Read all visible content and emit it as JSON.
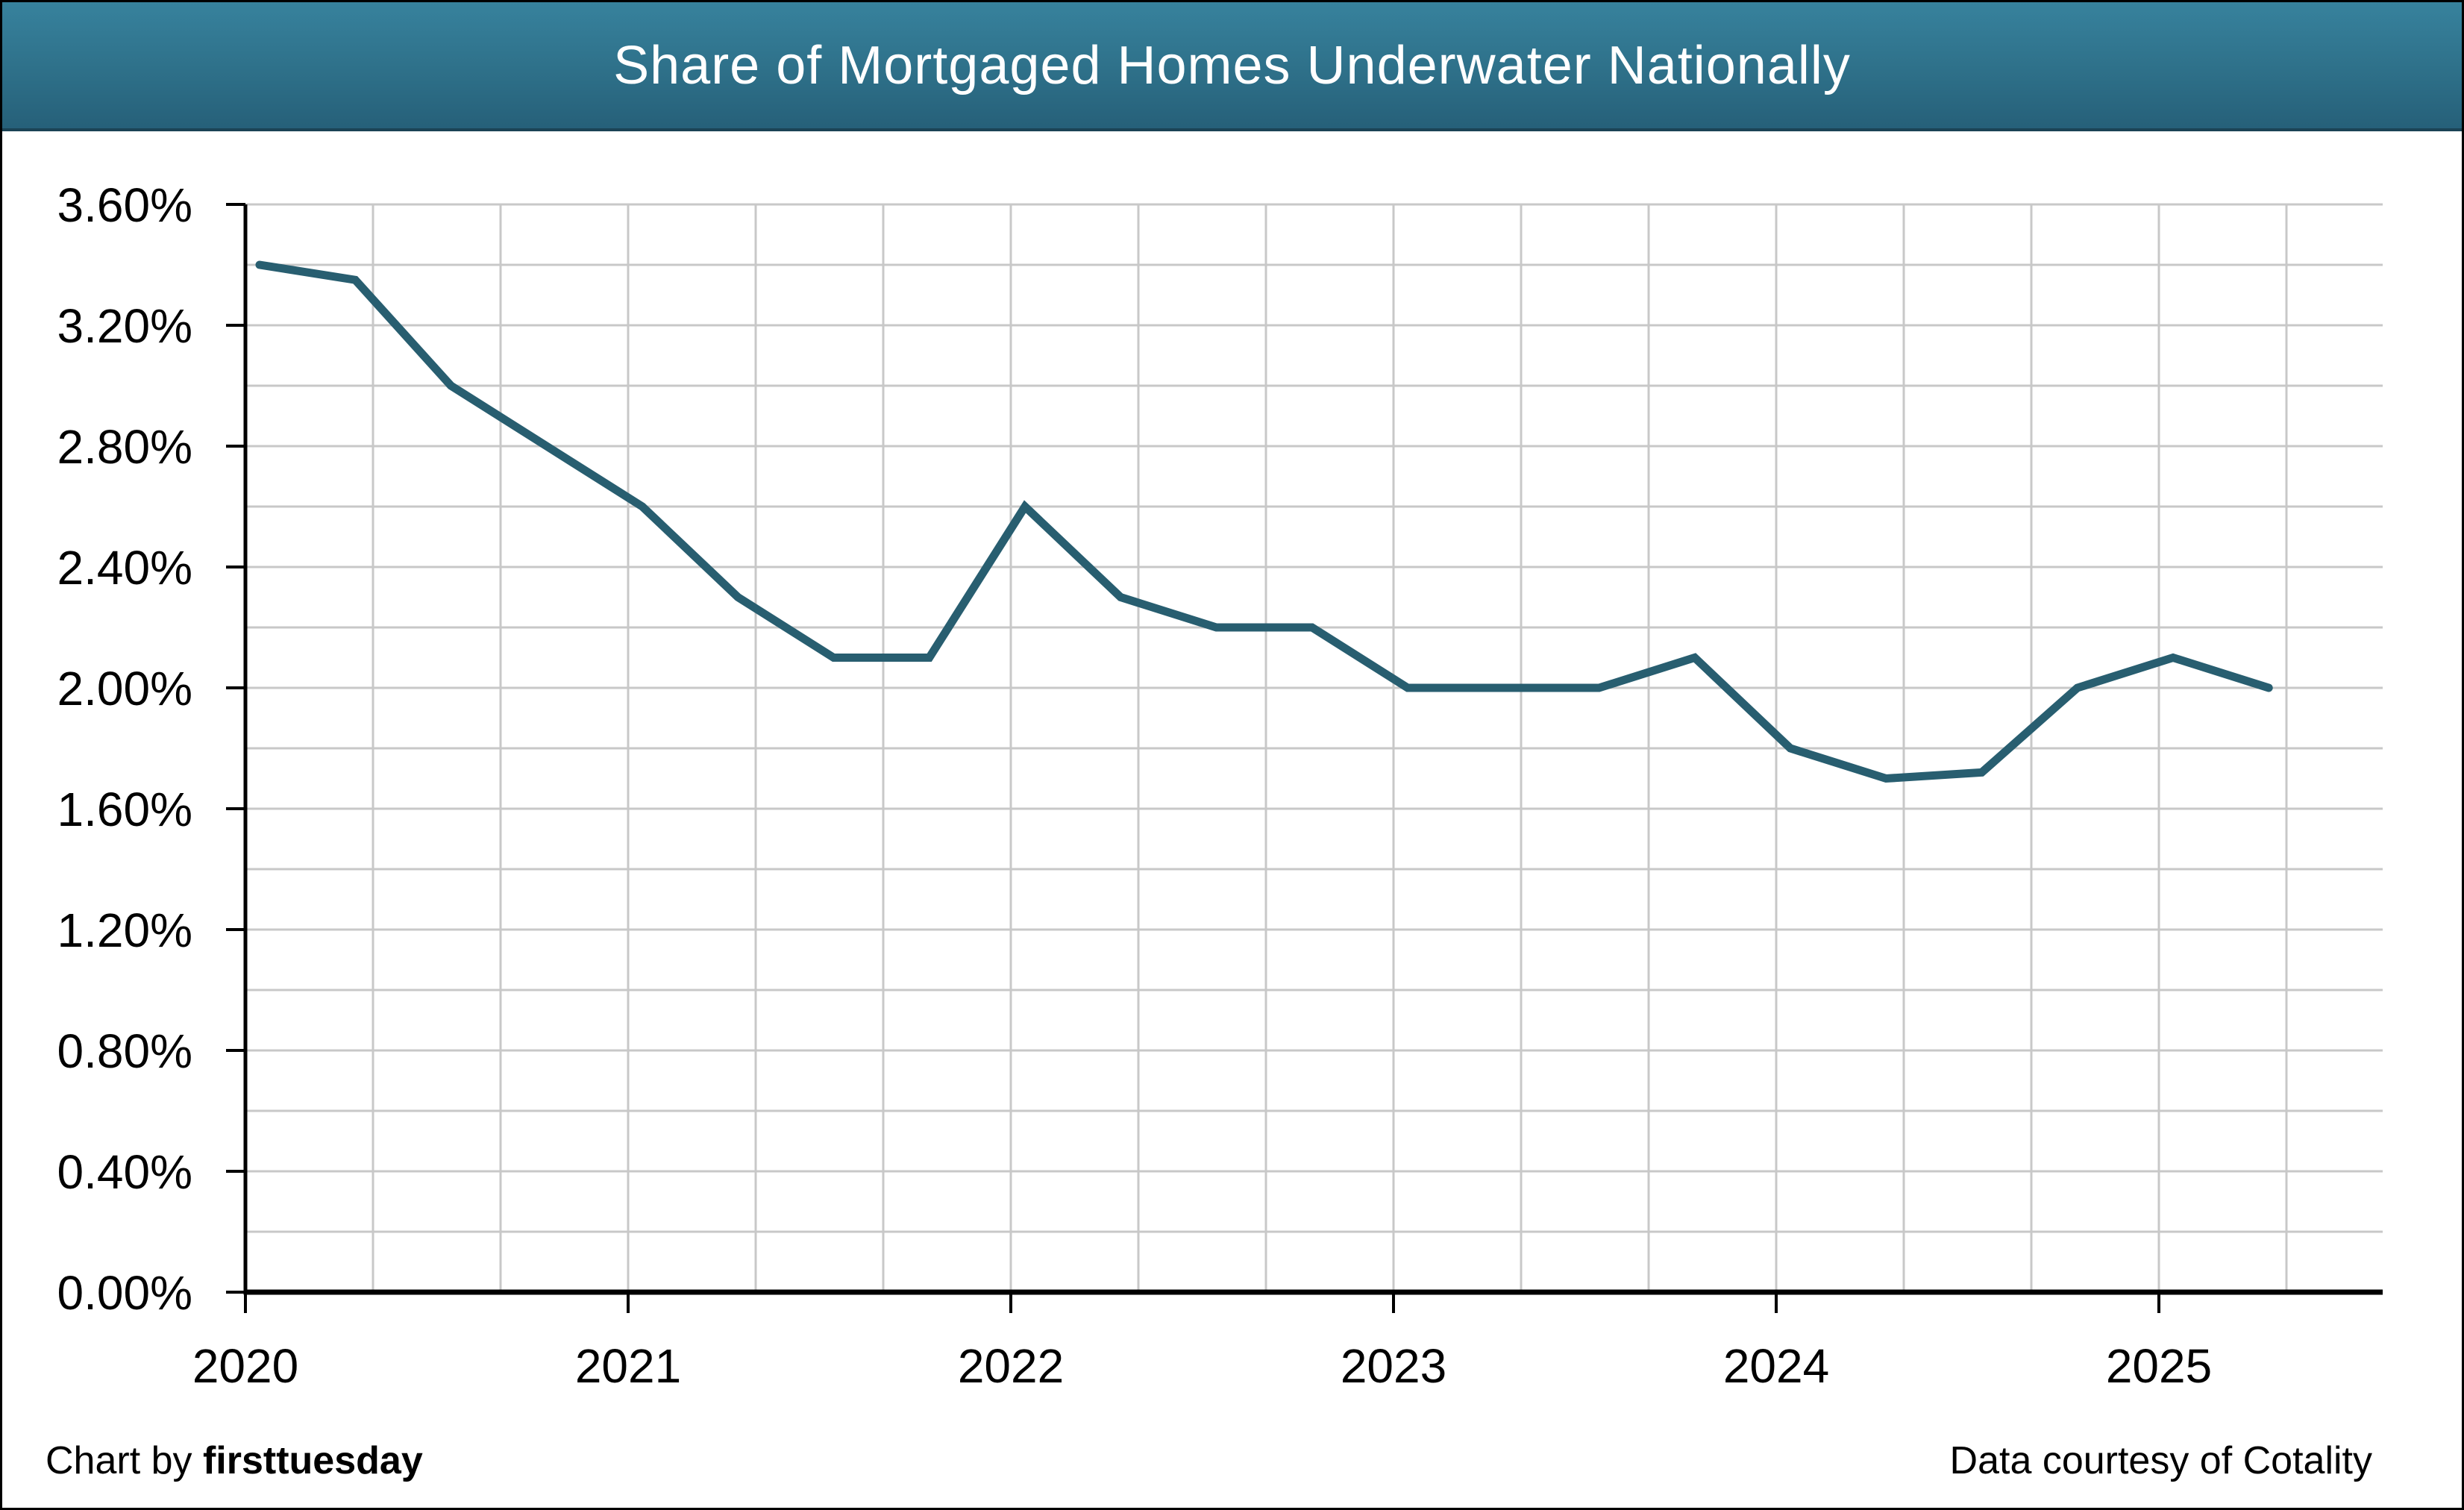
{
  "header": {
    "title": "Share of Mortgaged Homes Underwater Nationally"
  },
  "footer": {
    "credit_prefix": "Chart by ",
    "credit_brand": "firsttuesday",
    "data_credit": "Data courtesy of Cotality"
  },
  "colors": {
    "line": "#285E70",
    "grid": "#C8C8C8",
    "axis": "#000000",
    "label": "#000000",
    "title_bar_top": "#37829D",
    "title_bar_bottom": "#266079",
    "title_text": "#FFFFFF"
  },
  "chart_data": {
    "type": "line",
    "title": "Share of Mortgaged Homes Underwater Nationally",
    "xlabel": "",
    "ylabel": "",
    "ylim": [
      0,
      3.6
    ],
    "y_major_step": 0.4,
    "y_minor_step": 0.2,
    "y_tick_labels": [
      "0.00%",
      "0.40%",
      "0.80%",
      "1.20%",
      "1.60%",
      "2.00%",
      "2.40%",
      "2.80%",
      "3.20%",
      "3.60%"
    ],
    "x_tick_labels": [
      "2020",
      "2021",
      "2022",
      "2023",
      "2024",
      "2025"
    ],
    "x_gridlines_per_year": 3,
    "grid": true,
    "legend_position": "none",
    "series": [
      {
        "name": "Share of mortgaged homes underwater",
        "x": [
          "2020 Q1",
          "2020 Q2",
          "2020 Q3",
          "2020 Q4",
          "2021 Q1",
          "2021 Q2",
          "2021 Q3",
          "2021 Q4",
          "2022 Q1",
          "2022 Q2",
          "2022 Q3",
          "2022 Q4",
          "2023 Q1",
          "2023 Q2",
          "2023 Q3",
          "2023 Q4",
          "2024 Q1",
          "2024 Q2",
          "2024 Q3",
          "2024 Q4",
          "2025 Q1",
          "2025 Q2"
        ],
        "values": [
          3.4,
          3.35,
          3.0,
          2.8,
          2.6,
          2.3,
          2.1,
          2.1,
          2.6,
          2.3,
          2.2,
          2.2,
          2.0,
          2.0,
          2.0,
          2.1,
          1.8,
          1.7,
          1.72,
          2.0,
          2.1,
          2.0
        ]
      }
    ]
  }
}
